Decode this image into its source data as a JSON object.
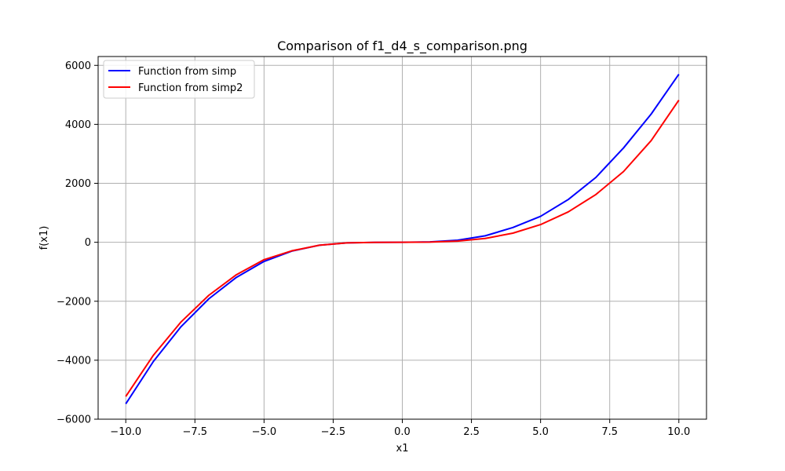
{
  "chart_data": {
    "type": "line",
    "title": "Comparison of f1_d4_s_comparison.png",
    "xlabel": "x1",
    "ylabel": "f(x1)",
    "xlim": [
      -11,
      11
    ],
    "ylim": [
      -6000,
      6300
    ],
    "grid": true,
    "legend_position": "top-left",
    "x_ticks": [
      -10.0,
      -7.5,
      -5.0,
      -2.5,
      0.0,
      2.5,
      5.0,
      7.5,
      10.0
    ],
    "x_tick_labels": [
      "−10.0",
      "−7.5",
      "−5.0",
      "−2.5",
      "0.0",
      "2.5",
      "5.0",
      "7.5",
      "10.0"
    ],
    "y_ticks": [
      -6000,
      -4000,
      -2000,
      0,
      2000,
      4000,
      6000
    ],
    "y_tick_labels": [
      "−6000",
      "−4000",
      "−2000",
      "0",
      "2000",
      "4000",
      "6000"
    ],
    "series": [
      {
        "name": "Function from simp",
        "color": "#0000ff",
        "x": [
          -10,
          -9,
          -8,
          -7,
          -6,
          -5,
          -4,
          -3,
          -2,
          -1,
          0,
          1,
          2,
          3,
          4,
          5,
          6,
          7,
          8,
          9,
          10
        ],
        "y": [
          -5480,
          -4040,
          -2860,
          -1920,
          -1190,
          -650,
          -300,
          -100,
          -20,
          -3,
          0,
          13,
          70,
          220,
          500,
          880,
          1450,
          2200,
          3200,
          4350,
          5700
        ]
      },
      {
        "name": "Function from simp2",
        "color": "#ff0000",
        "x": [
          -10,
          -9,
          -8,
          -7,
          -6,
          -5,
          -4,
          -3,
          -2,
          -1,
          0,
          1,
          2,
          3,
          4,
          5,
          6,
          7,
          8,
          9,
          10
        ],
        "y": [
          -5230,
          -3830,
          -2700,
          -1800,
          -1100,
          -590,
          -290,
          -100,
          -20,
          -2,
          0,
          7,
          40,
          130,
          310,
          600,
          1030,
          1620,
          2400,
          3450,
          4820
        ]
      }
    ]
  }
}
